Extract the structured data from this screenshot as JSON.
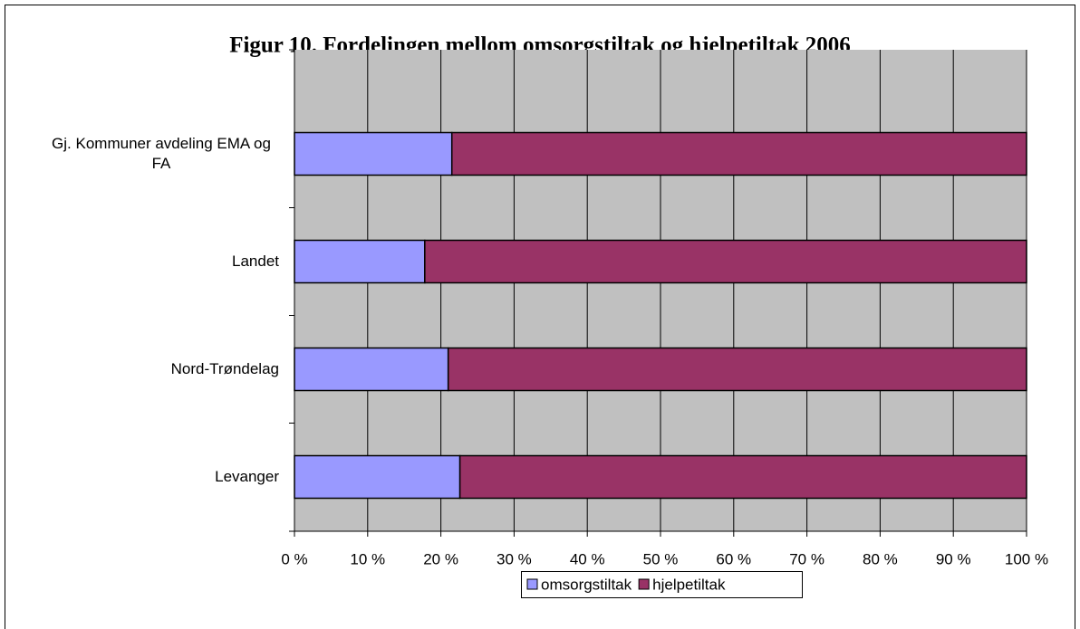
{
  "chart_data": {
    "type": "stacked-bar-horizontal",
    "title": "Figur 10. Fordelingen mellom omsorgstiltak og hjelpetiltak 2006",
    "categories": [
      "Gj. Kommuner avdeling EMA og FA",
      "Landet",
      "Nord-Trøndelag",
      "Levanger"
    ],
    "series": [
      {
        "name": "omsorgstiltak",
        "color": "#9999ff",
        "values": [
          21.5,
          17.8,
          21.0,
          22.6
        ]
      },
      {
        "name": "hjelpetiltak",
        "color": "#993366",
        "values": [
          78.5,
          82.2,
          79.0,
          77.4
        ]
      }
    ],
    "xlim": [
      0,
      100
    ],
    "xticks": [
      {
        "value": 0,
        "label": "0 %"
      },
      {
        "value": 10,
        "label": "10 %"
      },
      {
        "value": 20,
        "label": "20 %"
      },
      {
        "value": 30,
        "label": "30 %"
      },
      {
        "value": 40,
        "label": "40 %"
      },
      {
        "value": 50,
        "label": "50 %"
      },
      {
        "value": 60,
        "label": "60 %"
      },
      {
        "value": 70,
        "label": "70 %"
      },
      {
        "value": 80,
        "label": "80 %"
      },
      {
        "value": 90,
        "label": "90 %"
      },
      {
        "value": 100,
        "label": "100 %"
      }
    ],
    "grid": true,
    "legend": "bottom"
  }
}
